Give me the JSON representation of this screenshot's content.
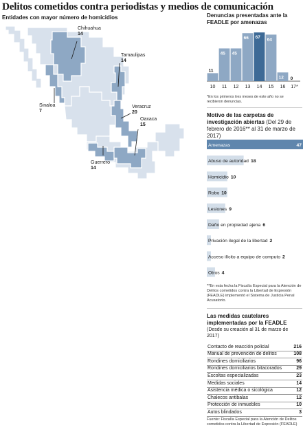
{
  "title": "Delitos cometidos contra periodistas y medios de comunicación",
  "map": {
    "subtitle": "Entidades con mayor número de homicidios",
    "labels": [
      {
        "state": "Chihuahua",
        "value": "14"
      },
      {
        "state": "Tamaulipas",
        "value": "14"
      },
      {
        "state": "Sinaloa",
        "value": "7"
      },
      {
        "state": "Veracruz",
        "value": "20"
      },
      {
        "state": "Oaxaca",
        "value": "15"
      },
      {
        "state": "Guerrero",
        "value": "14"
      }
    ],
    "colors": {
      "base": "#d8e1ec",
      "highlight": "#8ea8c4",
      "leader": "#1a1a1a"
    }
  },
  "denuncias": {
    "heading": "Denuncias presentadas ante la FEADLE por amenazas",
    "footnote": "*En los primeros tres meses de este año no se recibieron denuncias."
  },
  "motivos": {
    "heading": "Motivo de las carpetas de investigación abiertas",
    "subheading": "(Del 29 de febrero de 2016** al 31 de marzo de 2017)",
    "footnote": "**En esta fecha la Fiscalía Especial para la Atención de Delitos cometidos contra la Libertad de Expresión (FEADLE) implementó el Sistema de Justicia Penal Acusatorio."
  },
  "medidas": {
    "heading": "Las medidas cautelares implementadas por la FEADLE",
    "subheading": "(Desde su creación al 31 de marzo de 2017)",
    "rows": [
      {
        "label": "Contacto de reacción policial",
        "value": "216"
      },
      {
        "label": "Manual de prevención de delitos",
        "value": "108"
      },
      {
        "label": "Rondines domiciliarios",
        "value": "96"
      },
      {
        "label": "Rondines domiciliarios bitacorados",
        "value": "29"
      },
      {
        "label": "Escoltas especializadas",
        "value": "23"
      },
      {
        "label": "Medidas sociales",
        "value": "14"
      },
      {
        "label": "Asistencia médica o sicológica",
        "value": "12"
      },
      {
        "label": "Chalecos antibalas",
        "value": "12"
      },
      {
        "label": "Protección de inmuebles",
        "value": "10"
      },
      {
        "label": "Autos blindados",
        "value": "3"
      }
    ]
  },
  "source": "Fuente: Fiscalía Especial para la Atención de Delitos cometidos contra la Libertad de Expresión (FEADLE)",
  "chart_data": [
    {
      "type": "bar",
      "categories": [
        "10",
        "11",
        "12",
        "13",
        "14",
        "15",
        "16",
        "17*"
      ],
      "values": [
        11,
        45,
        45,
        66,
        67,
        64,
        12,
        0
      ],
      "highlight_index": 4,
      "ylim": [
        0,
        70
      ],
      "colors": {
        "bar": "#8ea8c4",
        "highlight": "#3d6a96",
        "label": "#ffffff"
      }
    },
    {
      "type": "bar",
      "orientation": "horizontal",
      "categories": [
        "Amenazas",
        "Abuso de autoridad",
        "Homicidio",
        "Robo",
        "Lesiones",
        "Daño en propiedad ajena",
        "Privación ilegal de la libertad",
        "Acceso ilícito a equipo de computo",
        "Otros"
      ],
      "values": [
        47,
        18,
        10,
        10,
        9,
        6,
        2,
        2,
        4
      ],
      "xlim": [
        0,
        47
      ],
      "colors": {
        "bar": "#d3dee9",
        "highlight": "#5f86ad"
      }
    }
  ]
}
